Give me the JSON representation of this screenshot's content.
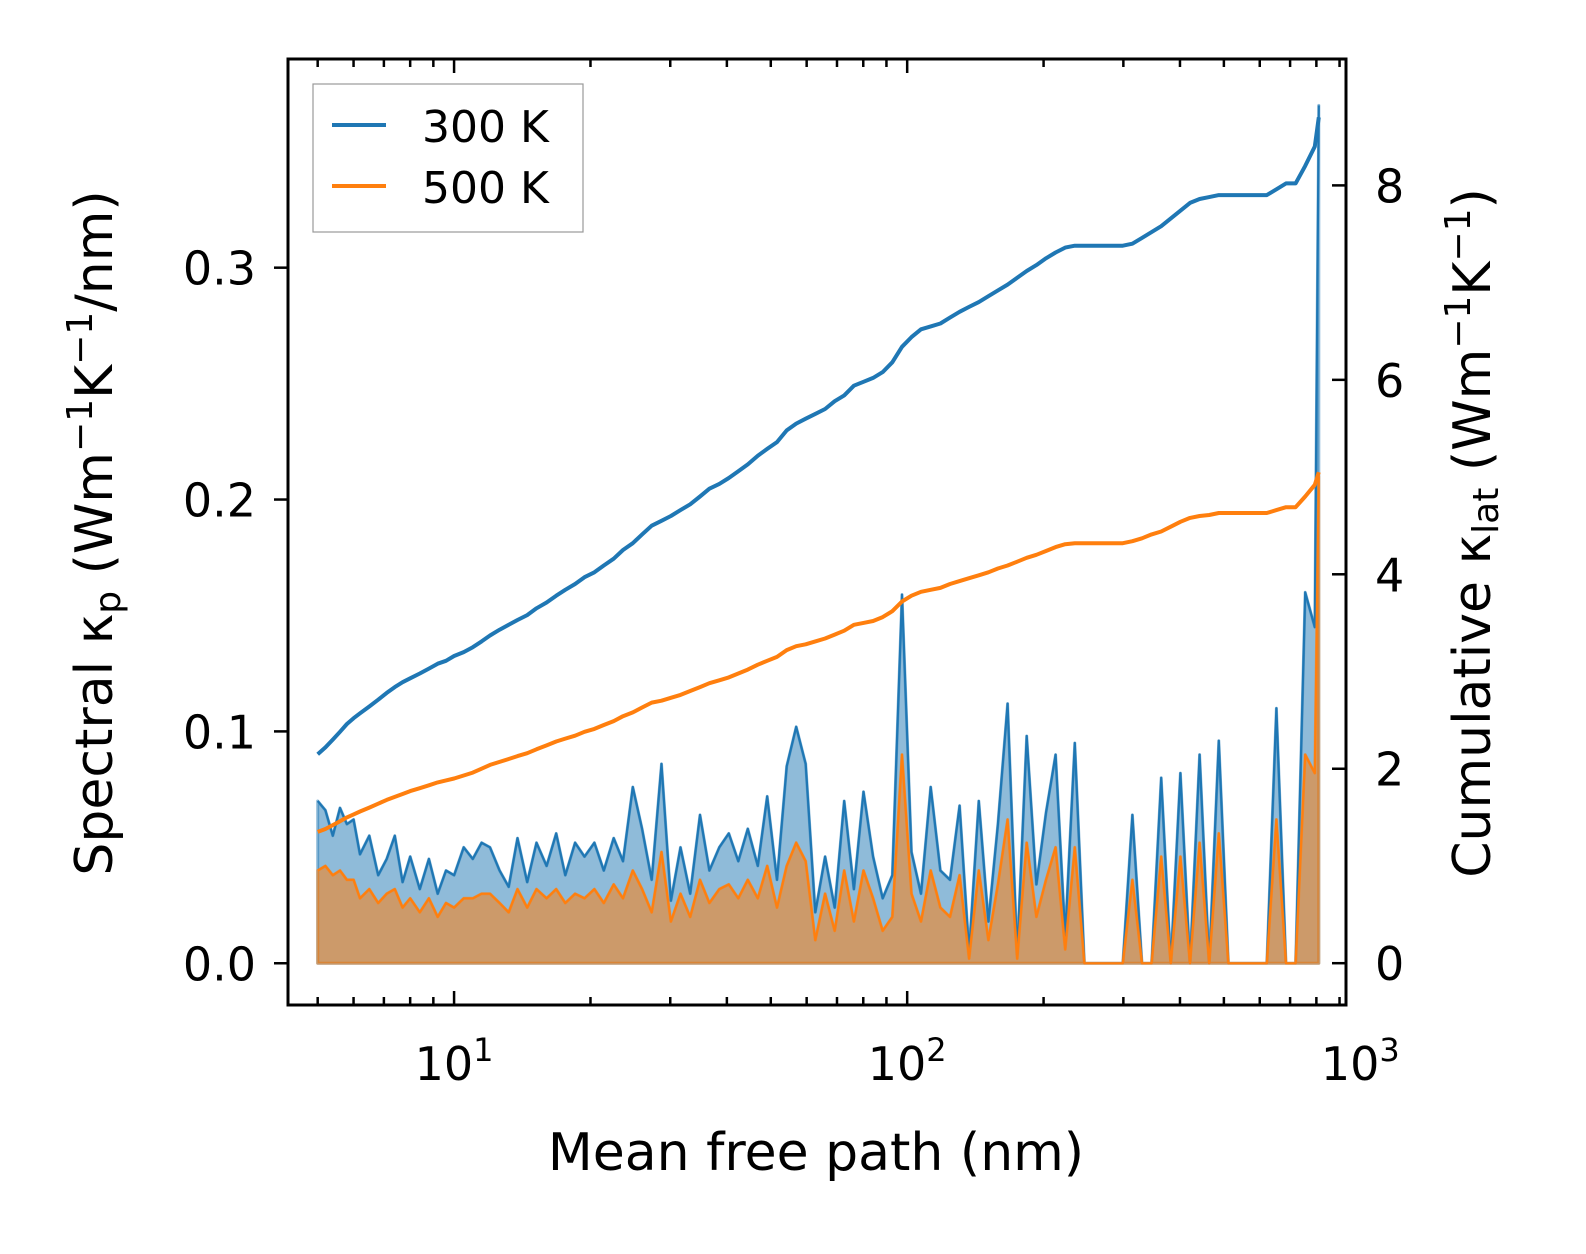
{
  "chart_data": {
    "type": "area",
    "x_scale": "log",
    "xlabel": "Mean free path (nm)",
    "ylabel_left_main": "Spectral κ",
    "ylabel_left_sub": "p",
    "ylabel_left_paren": "(Wm",
    "ylabel_left_sup1": "−1",
    "ylabel_left_k": "K",
    "ylabel_left_sup2": "−1",
    "ylabel_left_tail": "/nm)",
    "ylabel_right_main": "Cumulative κ",
    "ylabel_right_sub": "lat",
    "ylabel_right_paren": "(Wm",
    "ylabel_right_sup1": "−1",
    "ylabel_right_k": "K",
    "ylabel_right_sup2": "−1",
    "ylabel_right_tail": ")",
    "xlim": [
      4.3,
      930
    ],
    "ylim_left": [
      -0.018,
      0.39
    ],
    "ylim_right": [
      -0.43,
      9.3
    ],
    "x_ticks": [
      {
        "value": 10,
        "base": "10",
        "exp": "1"
      },
      {
        "value": 100,
        "base": "10",
        "exp": "2"
      },
      {
        "value": 1000,
        "base": "10",
        "exp": "3"
      }
    ],
    "y_ticks_left": [
      {
        "value": 0.0,
        "label": "0.0"
      },
      {
        "value": 0.1,
        "label": "0.1"
      },
      {
        "value": 0.2,
        "label": "0.2"
      },
      {
        "value": 0.3,
        "label": "0.3"
      }
    ],
    "y_ticks_right": [
      {
        "value": 0,
        "label": "0"
      },
      {
        "value": 2,
        "label": "2"
      },
      {
        "value": 4,
        "label": "4"
      },
      {
        "value": 6,
        "label": "6"
      },
      {
        "value": 8,
        "label": "8"
      }
    ],
    "legend": {
      "position": "top-left",
      "entries": [
        {
          "label": "300 K",
          "color": "#1f77b4"
        },
        {
          "label": "500 K",
          "color": "#ff7f0e"
        }
      ]
    },
    "x": [
      5.0,
      5.2,
      5.4,
      5.6,
      5.8,
      6.0,
      6.2,
      6.5,
      6.8,
      7.1,
      7.4,
      7.7,
      8.0,
      8.4,
      8.8,
      9.2,
      9.6,
      10.0,
      10.5,
      11.0,
      11.5,
      12.0,
      12.6,
      13.2,
      13.8,
      14.5,
      15.2,
      16.0,
      16.8,
      17.6,
      18.5,
      19.4,
      20.4,
      21.4,
      22.5,
      23.6,
      24.8,
      26.0,
      27.3,
      28.7,
      30.1,
      31.6,
      33.2,
      34.9,
      36.6,
      38.5,
      40.4,
      42.4,
      44.5,
      46.8,
      49.1,
      51.6,
      54.2,
      56.9,
      59.7,
      62.7,
      65.9,
      69.2,
      72.6,
      76.3,
      80.1,
      84.1,
      88.3,
      92.7,
      97.4,
      102.2,
      107.3,
      112.7,
      118.4,
      124.3,
      130.5,
      137.0,
      143.9,
      151.1,
      158.6,
      166.6,
      174.9,
      183.6,
      192.8,
      202.5,
      212.6,
      223.2,
      234.4,
      246.1,
      258.4,
      271.3,
      284.9,
      299.2,
      314.1,
      329.8,
      346.3,
      363.6,
      381.8,
      400.9,
      421.0,
      442.0,
      464.1,
      487.3,
      511.7,
      537.3,
      564.1,
      592.3,
      622.0,
      653.0,
      685.7,
      720.0,
      756.0,
      793.8,
      810.0
    ],
    "series": [
      {
        "name": "300 K",
        "color": "#1f77b4",
        "spectral": [
          0.07,
          0.066,
          0.055,
          0.067,
          0.06,
          0.062,
          0.047,
          0.055,
          0.038,
          0.045,
          0.055,
          0.035,
          0.046,
          0.032,
          0.045,
          0.03,
          0.04,
          0.038,
          0.05,
          0.045,
          0.052,
          0.05,
          0.04,
          0.033,
          0.054,
          0.035,
          0.052,
          0.042,
          0.056,
          0.038,
          0.052,
          0.046,
          0.052,
          0.04,
          0.054,
          0.044,
          0.076,
          0.058,
          0.036,
          0.086,
          0.027,
          0.05,
          0.03,
          0.064,
          0.04,
          0.05,
          0.056,
          0.044,
          0.058,
          0.042,
          0.072,
          0.036,
          0.085,
          0.102,
          0.086,
          0.022,
          0.046,
          0.024,
          0.07,
          0.032,
          0.074,
          0.046,
          0.028,
          0.038,
          0.159,
          0.048,
          0.03,
          0.076,
          0.04,
          0.036,
          0.068,
          0.005,
          0.07,
          0.018,
          0.06,
          0.112,
          0.004,
          0.098,
          0.034,
          0.065,
          0.09,
          0.012,
          0.095,
          0.0,
          0.0,
          0.0,
          0.0,
          0.0,
          0.064,
          0.0,
          0.0,
          0.08,
          0.0,
          0.082,
          0.0,
          0.09,
          0.0,
          0.096,
          0.0,
          0.0,
          0.0,
          0.0,
          0.0,
          0.11,
          0.0,
          0.0,
          0.16,
          0.145,
          0.37
        ],
        "cumulative": [
          2.15,
          2.22,
          2.3,
          2.38,
          2.46,
          2.52,
          2.57,
          2.64,
          2.71,
          2.78,
          2.84,
          2.89,
          2.93,
          2.98,
          3.03,
          3.08,
          3.11,
          3.16,
          3.2,
          3.25,
          3.31,
          3.37,
          3.43,
          3.48,
          3.53,
          3.58,
          3.65,
          3.71,
          3.78,
          3.84,
          3.9,
          3.97,
          4.02,
          4.09,
          4.16,
          4.25,
          4.32,
          4.41,
          4.5,
          4.55,
          4.6,
          4.66,
          4.72,
          4.8,
          4.88,
          4.93,
          4.99,
          5.06,
          5.13,
          5.22,
          5.29,
          5.36,
          5.48,
          5.55,
          5.6,
          5.65,
          5.7,
          5.78,
          5.84,
          5.94,
          5.98,
          6.02,
          6.08,
          6.18,
          6.34,
          6.44,
          6.52,
          6.55,
          6.58,
          6.64,
          6.7,
          6.75,
          6.8,
          6.86,
          6.92,
          6.98,
          7.05,
          7.12,
          7.18,
          7.25,
          7.31,
          7.36,
          7.38,
          7.38,
          7.38,
          7.38,
          7.38,
          7.38,
          7.4,
          7.46,
          7.52,
          7.58,
          7.66,
          7.74,
          7.82,
          7.86,
          7.88,
          7.9,
          7.9,
          7.9,
          7.9,
          7.9,
          7.9,
          7.96,
          8.02,
          8.02,
          8.2,
          8.4,
          8.7
        ]
      },
      {
        "name": "500 K",
        "color": "#ff7f0e",
        "spectral": [
          0.04,
          0.042,
          0.038,
          0.04,
          0.036,
          0.036,
          0.028,
          0.032,
          0.026,
          0.03,
          0.032,
          0.024,
          0.028,
          0.022,
          0.028,
          0.02,
          0.026,
          0.024,
          0.028,
          0.028,
          0.03,
          0.03,
          0.026,
          0.022,
          0.032,
          0.024,
          0.032,
          0.028,
          0.032,
          0.026,
          0.03,
          0.028,
          0.032,
          0.026,
          0.034,
          0.028,
          0.04,
          0.032,
          0.022,
          0.048,
          0.018,
          0.03,
          0.02,
          0.036,
          0.026,
          0.032,
          0.034,
          0.028,
          0.036,
          0.028,
          0.042,
          0.024,
          0.042,
          0.052,
          0.044,
          0.01,
          0.03,
          0.014,
          0.04,
          0.018,
          0.04,
          0.028,
          0.014,
          0.02,
          0.09,
          0.03,
          0.018,
          0.04,
          0.024,
          0.02,
          0.038,
          0.002,
          0.04,
          0.01,
          0.034,
          0.062,
          0.002,
          0.052,
          0.02,
          0.036,
          0.05,
          0.006,
          0.05,
          0.0,
          0.0,
          0.0,
          0.0,
          0.0,
          0.036,
          0.0,
          0.0,
          0.046,
          0.0,
          0.046,
          0.0,
          0.052,
          0.0,
          0.056,
          0.0,
          0.0,
          0.0,
          0.0,
          0.0,
          0.062,
          0.0,
          0.0,
          0.09,
          0.082,
          0.21
        ],
        "cumulative": [
          1.35,
          1.38,
          1.42,
          1.46,
          1.5,
          1.53,
          1.56,
          1.6,
          1.64,
          1.68,
          1.71,
          1.74,
          1.77,
          1.8,
          1.83,
          1.86,
          1.88,
          1.9,
          1.93,
          1.96,
          2.0,
          2.04,
          2.07,
          2.1,
          2.13,
          2.16,
          2.2,
          2.24,
          2.28,
          2.31,
          2.34,
          2.38,
          2.41,
          2.45,
          2.49,
          2.54,
          2.58,
          2.63,
          2.68,
          2.7,
          2.73,
          2.76,
          2.8,
          2.84,
          2.88,
          2.91,
          2.94,
          2.98,
          3.02,
          3.07,
          3.11,
          3.15,
          3.22,
          3.26,
          3.28,
          3.31,
          3.34,
          3.38,
          3.42,
          3.48,
          3.5,
          3.52,
          3.56,
          3.62,
          3.72,
          3.78,
          3.82,
          3.84,
          3.86,
          3.9,
          3.93,
          3.96,
          3.99,
          4.02,
          4.06,
          4.09,
          4.13,
          4.17,
          4.2,
          4.24,
          4.28,
          4.31,
          4.32,
          4.32,
          4.32,
          4.32,
          4.32,
          4.32,
          4.34,
          4.37,
          4.41,
          4.44,
          4.49,
          4.54,
          4.58,
          4.6,
          4.61,
          4.63,
          4.63,
          4.63,
          4.63,
          4.63,
          4.63,
          4.66,
          4.69,
          4.69,
          4.8,
          4.92,
          5.05
        ]
      }
    ]
  }
}
